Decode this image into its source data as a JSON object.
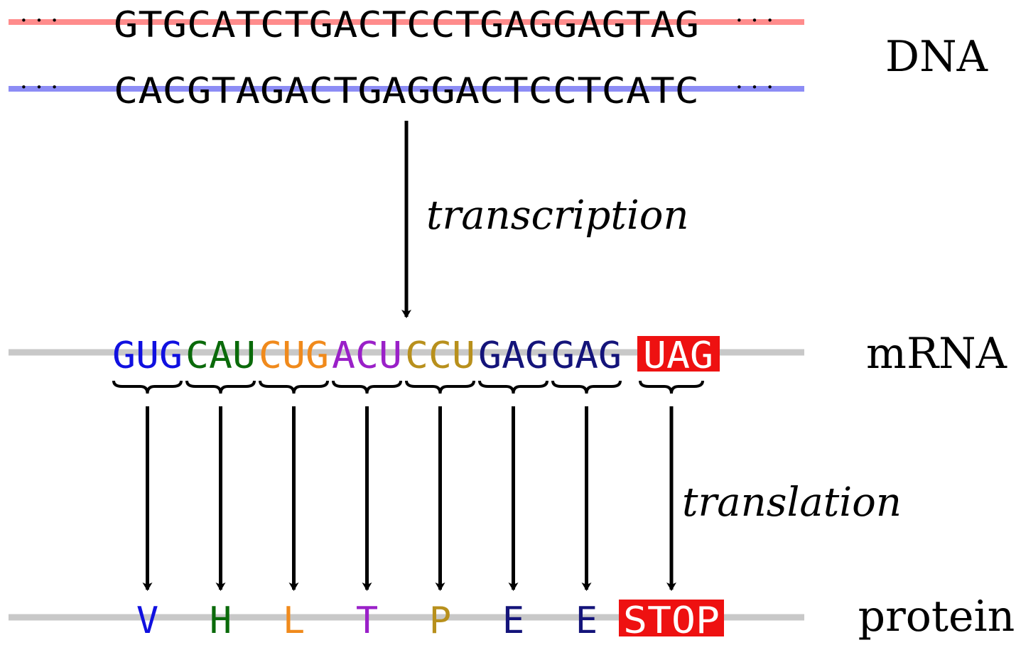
{
  "dna": {
    "label": "DNA",
    "coding_strand": "GTGCATCTGACTCCTGAGGAGTAG",
    "template_strand": "CACGTAGACTGAGGACTCCTCATC",
    "continuation": "· · ·",
    "coding_color": "#ff8c8c",
    "template_color": "#8c8cf5"
  },
  "transcription_label": "transcription",
  "translation_label": "translation",
  "mrna": {
    "label": "mRNA",
    "codons": [
      {
        "text": "GUG",
        "color": "#1010e0"
      },
      {
        "text": "CAU",
        "color": "#0a6a0a"
      },
      {
        "text": "CUG",
        "color": "#f08a1c"
      },
      {
        "text": "ACU",
        "color": "#9a20c8"
      },
      {
        "text": "CCU",
        "color": "#b8901c"
      },
      {
        "text": "GAG",
        "color": "#14147a"
      },
      {
        "text": "GAG",
        "color": "#14147a"
      },
      {
        "text": "UAG",
        "color": "#ffffff",
        "highlight": "#ee1111"
      }
    ]
  },
  "protein": {
    "label": "protein",
    "residues": [
      {
        "text": "V",
        "color": "#1010e0"
      },
      {
        "text": "H",
        "color": "#0a6a0a"
      },
      {
        "text": "L",
        "color": "#f08a1c"
      },
      {
        "text": "T",
        "color": "#9a20c8"
      },
      {
        "text": "P",
        "color": "#b8901c"
      },
      {
        "text": "E",
        "color": "#14147a"
      },
      {
        "text": "E",
        "color": "#14147a"
      },
      {
        "text": "STOP",
        "color": "#ffffff",
        "highlight": "#ee1111"
      }
    ]
  },
  "strand_line_color": "#c8c8c8"
}
